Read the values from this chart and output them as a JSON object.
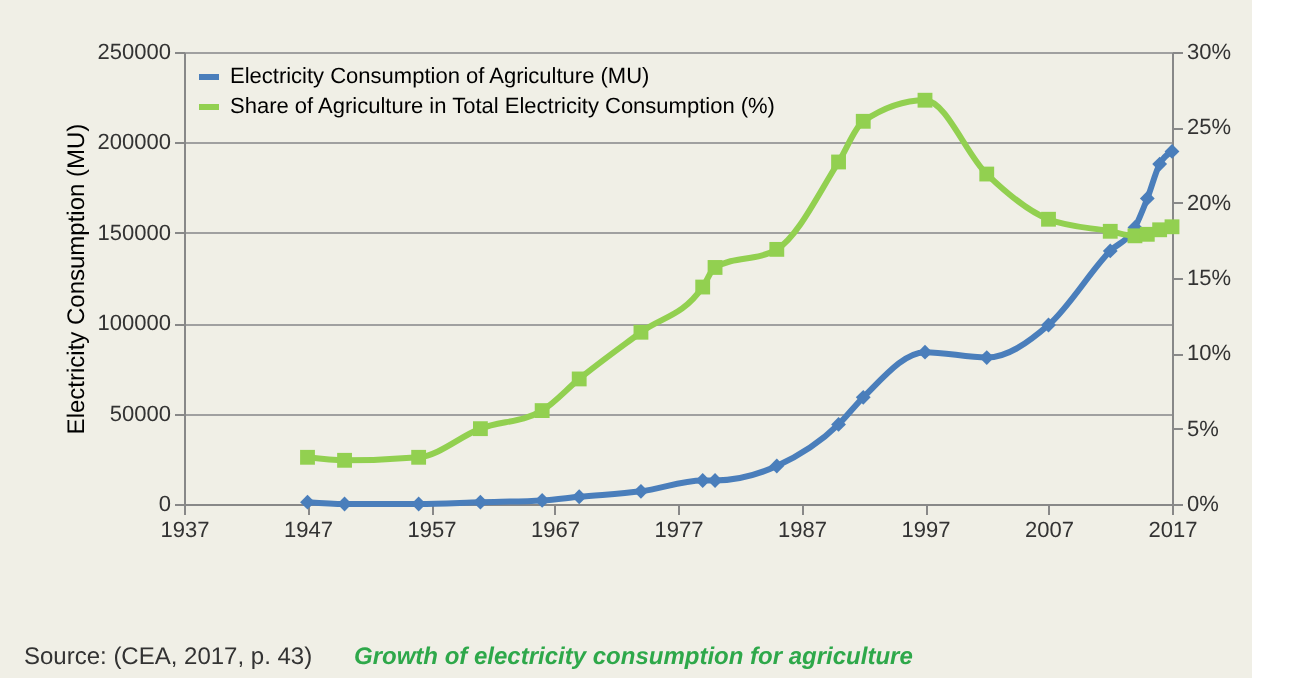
{
  "chart_data": {
    "type": "line",
    "xlim": [
      1937,
      2017
    ],
    "xticks": [
      1937,
      1947,
      1957,
      1967,
      1977,
      1987,
      1997,
      2007,
      2017
    ],
    "ylim": [
      0,
      250000
    ],
    "yticks": [
      0,
      50000,
      100000,
      150000,
      200000,
      250000
    ],
    "y2lim": [
      0,
      30
    ],
    "y2ticks": [
      {
        "value": 0,
        "label": "0%"
      },
      {
        "value": 5,
        "label": "5%"
      },
      {
        "value": 10,
        "label": "10%"
      },
      {
        "value": 15,
        "label": "15%"
      },
      {
        "value": 20,
        "label": "20%"
      },
      {
        "value": 25,
        "label": "25%"
      },
      {
        "value": 30,
        "label": "30%"
      }
    ],
    "ylabel": "Electricity Consumption (MU)",
    "grid": "y",
    "legend": "top left",
    "line_style": "solid",
    "x": [
      1947,
      1950,
      1956,
      1961,
      1966,
      1969,
      1974,
      1979,
      1980,
      1985,
      1990,
      1992,
      1997,
      2002,
      2007,
      2012,
      2014,
      2015,
      2016,
      2017
    ],
    "series": [
      {
        "name": "Electricity Consumption of Agriculture (MU)",
        "color": "#4a7ebb",
        "marker": "diamond",
        "values": [
          1000,
          0,
          0,
          1000,
          2000,
          4000,
          7000,
          13000,
          13000,
          21000,
          44000,
          59000,
          84000,
          81000,
          99000,
          140000,
          153000,
          169000,
          188000,
          195000
        ]
      },
      {
        "name": "Share of Agriculture in Total Electricity Consumption (%)",
        "color": "#92d050",
        "marker": "square",
        "axis": "y2",
        "values": [
          3.1,
          2.9,
          3.1,
          5.0,
          6.2,
          8.3,
          11.4,
          14.4,
          15.7,
          16.9,
          22.7,
          25.4,
          26.8,
          21.9,
          18.9,
          18.1,
          17.8,
          17.9,
          18.2,
          18.4
        ]
      }
    ],
    "annotations": [
      "Source: (CEA, 2017, p. 43)",
      "Growth of electricity consumption for agriculture"
    ]
  }
}
